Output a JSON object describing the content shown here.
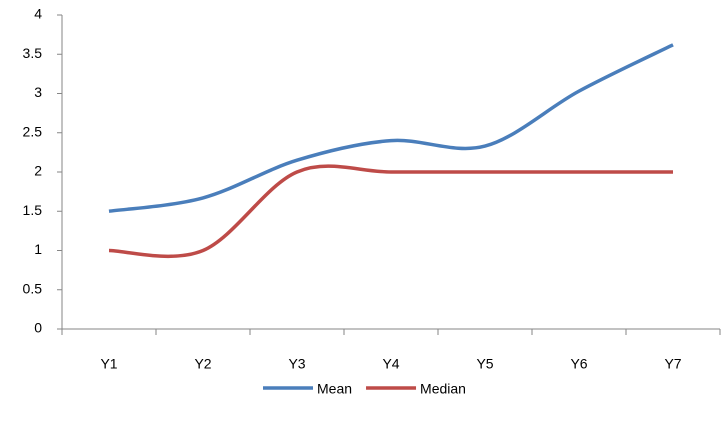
{
  "chart_data": {
    "type": "line",
    "categories": [
      "Y1",
      "Y2",
      "Y3",
      "Y4",
      "Y5",
      "Y6",
      "Y7"
    ],
    "series": [
      {
        "name": "Mean",
        "color": "#4a7ebb",
        "values": [
          1.5,
          1.67,
          2.15,
          2.4,
          2.33,
          3.03,
          3.62
        ]
      },
      {
        "name": "Median",
        "color": "#be4b48",
        "values": [
          1,
          1,
          2,
          2,
          2,
          2,
          2
        ]
      }
    ],
    "ylim": [
      0,
      4
    ],
    "yticks": [
      0,
      0.5,
      1,
      1.5,
      2,
      2.5,
      3,
      3.5,
      4
    ],
    "grid": false,
    "smooth": true,
    "legend": "bottom"
  }
}
